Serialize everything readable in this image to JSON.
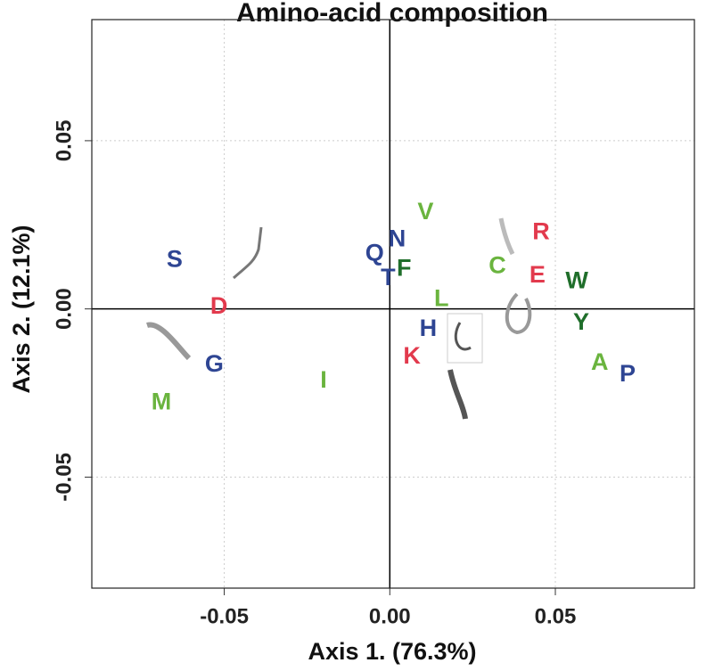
{
  "chart_data": {
    "type": "scatter",
    "title": "Amino-acid composition",
    "x_label": "Axis 1. (76.3%)",
    "y_label": "Axis 2. (12.1%)",
    "xlim": [
      -0.09,
      0.092
    ],
    "ylim": [
      -0.083,
      0.086
    ],
    "xticks": [
      -0.05,
      {
        "value": 0,
        "label": "0.00"
      },
      0.05
    ],
    "yticks": [
      -0.05,
      {
        "value": 0,
        "label": "0.00"
      },
      0.05
    ],
    "grid": true,
    "zero_lines": true,
    "points": [
      {
        "label": "S",
        "color": "#2e4593",
        "x": -0.065,
        "y": 0.0144
      },
      {
        "label": "D",
        "color": "#e23a4d",
        "x": -0.0516,
        "y": 0.0005
      },
      {
        "label": "G",
        "color": "#2e4593",
        "x": -0.053,
        "y": -0.0168
      },
      {
        "label": "M",
        "color": "#6ab43e",
        "x": -0.069,
        "y": -0.028
      },
      {
        "label": "I",
        "color": "#6ab43e",
        "x": -0.02,
        "y": -0.0215
      },
      {
        "label": "Q",
        "color": "#2e4593",
        "x": -0.0046,
        "y": 0.0162
      },
      {
        "label": "N",
        "color": "#2e4593",
        "x": 0.0022,
        "y": 0.0205
      },
      {
        "label": "T",
        "color": "#2e4593",
        "x": -0.0005,
        "y": 0.009
      },
      {
        "label": "F",
        "color": "#1f6e2a",
        "x": 0.0043,
        "y": 0.0117
      },
      {
        "label": "V",
        "color": "#6ab43e",
        "x": 0.0108,
        "y": 0.0285
      },
      {
        "label": "L",
        "color": "#6ab43e",
        "x": 0.0156,
        "y": 0.0027
      },
      {
        "label": "H",
        "color": "#2e4593",
        "x": 0.0116,
        "y": -0.0061
      },
      {
        "label": "K",
        "color": "#e23a4d",
        "x": 0.0067,
        "y": -0.0144
      },
      {
        "label": "C",
        "color": "#6ab43e",
        "x": 0.0325,
        "y": 0.0125
      },
      {
        "label": "R",
        "color": "#e23a4d",
        "x": 0.0457,
        "y": 0.0226
      },
      {
        "label": "E",
        "color": "#e23a4d",
        "x": 0.0446,
        "y": 0.0098
      },
      {
        "label": "W",
        "color": "#1f6e2a",
        "x": 0.0565,
        "y": 0.008
      },
      {
        "label": "Y",
        "color": "#1f6e2a",
        "x": 0.0578,
        "y": -0.0043
      },
      {
        "label": "A",
        "color": "#6ab43e",
        "x": 0.0634,
        "y": -0.0162
      },
      {
        "label": "P",
        "color": "#2e4593",
        "x": 0.0718,
        "y": -0.0197
      }
    ]
  }
}
